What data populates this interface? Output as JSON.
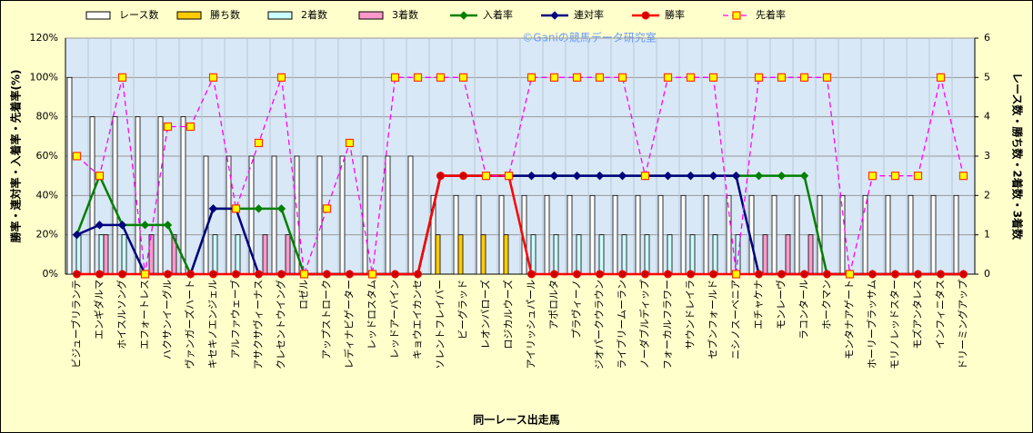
{
  "chart_data": {
    "type": "combo",
    "watermark": "©Ganiの競馬データ研究室",
    "x_label": "同一レース出走馬",
    "y_label": "勝率・連対率・入着率・先着率(%)",
    "y2_label": "レース数・勝ち数・2着数・3着数",
    "categories": [
      "ビジューブリランテ",
      "エンギダルマ",
      "ホイスルソング",
      "エフォートレス",
      "ハクサンイーグル",
      "ヴァンガーズハート",
      "キセキノエンジェル",
      "アルファウェーブ",
      "アサクサヴィーナス",
      "クレセントウイング",
      "ロゼル",
      "アップストローク",
      "レディナビゲーター",
      "レッドロスタム",
      "レッドアーバイン",
      "キョウエイカンセ",
      "ソレントフレイバー",
      "ビーグラッド",
      "レオンバローズ",
      "ロジカルウーズ",
      "アイリッシュパール",
      "アポロルタ",
      "プラヴィーノ",
      "ジオパークウラウン",
      "ライブリームーラン",
      "ノーダブルディップ",
      "フォーカルフラワー",
      "サウンドレイラ",
      "セブンフォールド",
      "ニシノスーベニア",
      "エチャケナ",
      "モンレーヴ",
      "ラコンタール",
      "ホークマン",
      "モンタナアゲート",
      "ホーリーブラッサム",
      "モリノレッドスター",
      "モズアンタレス",
      "インフィニタス",
      "ドリーミングアップ"
    ],
    "ylim": [
      0,
      120
    ],
    "yticks": [
      {
        "value": 0,
        "label": "0%"
      },
      {
        "value": 20,
        "label": "20%"
      },
      {
        "value": 40,
        "label": "40%"
      },
      {
        "value": 60,
        "label": "60%"
      },
      {
        "value": 80,
        "label": "80%"
      },
      {
        "value": 100,
        "label": "100%"
      },
      {
        "value": 120,
        "label": "120%"
      }
    ],
    "y2lim": [
      0,
      6
    ],
    "y2ticks": [
      0,
      1,
      2,
      3,
      4,
      5,
      6
    ],
    "grid": true,
    "series": [
      {
        "name": "レース数",
        "type": "bar",
        "axis": "y2",
        "color": "#ffffff",
        "values": [
          5,
          4,
          4,
          4,
          4,
          4,
          3,
          3,
          3,
          3,
          3,
          3,
          3,
          3,
          3,
          3,
          2,
          2,
          2,
          2,
          2,
          2,
          2,
          2,
          2,
          2,
          2,
          2,
          2,
          2,
          2,
          2,
          2,
          2,
          2,
          2,
          2,
          2,
          2,
          2
        ]
      },
      {
        "name": "勝ち数",
        "type": "bar",
        "axis": "y2",
        "color": "#ffcc00",
        "values": [
          0,
          0,
          0,
          0,
          0,
          0,
          0,
          0,
          0,
          0,
          0,
          0,
          0,
          0,
          0,
          0,
          1,
          1,
          1,
          1,
          0,
          0,
          0,
          0,
          0,
          0,
          0,
          0,
          0,
          0,
          0,
          0,
          0,
          0,
          0,
          0,
          0,
          0,
          0,
          0
        ]
      },
      {
        "name": "2着数",
        "type": "bar",
        "axis": "y2",
        "color": "#ccffff",
        "values": [
          1,
          1,
          1,
          0,
          0,
          0,
          1,
          1,
          0,
          0,
          0,
          0,
          0,
          0,
          0,
          0,
          0,
          0,
          0,
          0,
          1,
          1,
          1,
          1,
          1,
          1,
          1,
          1,
          1,
          1,
          0,
          0,
          0,
          0,
          0,
          0,
          0,
          0,
          0,
          0
        ]
      },
      {
        "name": "3着数",
        "type": "bar",
        "axis": "y2",
        "color": "#ff99cc",
        "values": [
          0,
          1,
          0,
          1,
          1,
          0,
          0,
          0,
          1,
          1,
          0,
          0,
          0,
          0,
          0,
          0,
          0,
          0,
          0,
          0,
          0,
          0,
          0,
          0,
          0,
          0,
          0,
          0,
          0,
          0,
          1,
          1,
          1,
          0,
          0,
          0,
          0,
          0,
          0,
          0
        ]
      },
      {
        "name": "入着率",
        "type": "line",
        "color": "#008000",
        "marker": "diamond",
        "values": [
          20,
          50,
          25,
          25,
          25,
          0,
          33.3,
          33.3,
          33.3,
          33.3,
          0,
          0,
          0,
          0,
          0,
          0,
          50,
          50,
          50,
          50,
          50,
          50,
          50,
          50,
          50,
          50,
          50,
          50,
          50,
          50,
          50,
          50,
          50,
          0,
          0,
          0,
          0,
          0,
          0,
          0
        ]
      },
      {
        "name": "連対率",
        "type": "line",
        "color": "#000080",
        "marker": "diamond",
        "values": [
          20,
          25,
          25,
          0,
          0,
          0,
          33.3,
          33.3,
          0,
          0,
          0,
          0,
          0,
          0,
          0,
          0,
          50,
          50,
          50,
          50,
          50,
          50,
          50,
          50,
          50,
          50,
          50,
          50,
          50,
          50,
          0,
          0,
          0,
          0,
          0,
          0,
          0,
          0,
          0,
          0
        ]
      },
      {
        "name": "勝率",
        "type": "line",
        "color": "#ff0000",
        "marker": "circle",
        "values": [
          0,
          0,
          0,
          0,
          0,
          0,
          0,
          0,
          0,
          0,
          0,
          0,
          0,
          0,
          0,
          0,
          50,
          50,
          50,
          50,
          0,
          0,
          0,
          0,
          0,
          0,
          0,
          0,
          0,
          0,
          0,
          0,
          0,
          0,
          0,
          0,
          0,
          0,
          0,
          0
        ]
      },
      {
        "name": "先着率",
        "type": "line",
        "dashed": true,
        "color": "#ff00ff",
        "marker": "square",
        "values": [
          60,
          50,
          100,
          0,
          75,
          75,
          100,
          33.3,
          66.7,
          100,
          0,
          33.3,
          66.7,
          0,
          100,
          100,
          100,
          100,
          50,
          50,
          100,
          100,
          100,
          100,
          100,
          50,
          100,
          100,
          100,
          0,
          100,
          100,
          100,
          100,
          0,
          50,
          50,
          50,
          100,
          50
        ]
      }
    ]
  }
}
